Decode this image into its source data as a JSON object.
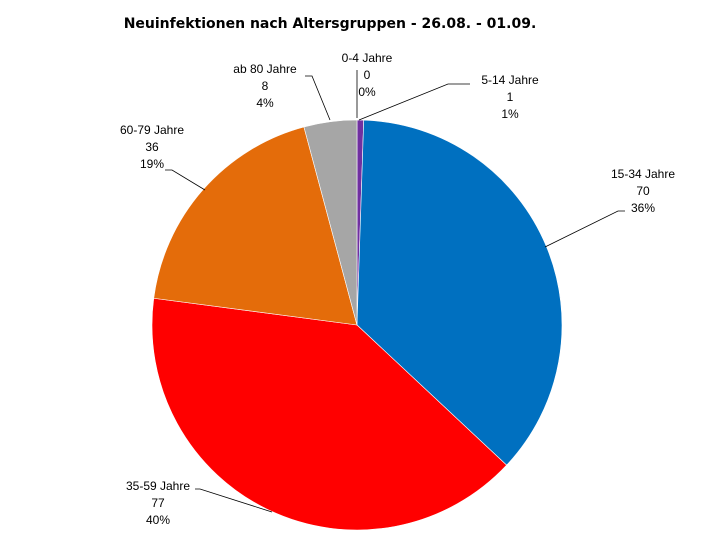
{
  "chart_data": {
    "type": "pie",
    "title": "Neuinfektionen nach Altersgruppen  - 26.08. - 01.09.",
    "categories": [
      "0-4 Jahre",
      "5-14 Jahre",
      "15-34 Jahre",
      "35-59 Jahre",
      "60-79 Jahre",
      "ab 80 Jahre"
    ],
    "values": [
      0,
      1,
      70,
      77,
      36,
      8
    ],
    "percent_labels": [
      "0%",
      "1%",
      "36%",
      "40%",
      "19%",
      "4%"
    ],
    "colors": [
      "#4472C4",
      "#7030A0",
      "#0070C0",
      "#FF0000",
      "#E46C0A",
      "#A6A6A6"
    ],
    "legend": "none",
    "data_labels": "outside with leader lines"
  }
}
